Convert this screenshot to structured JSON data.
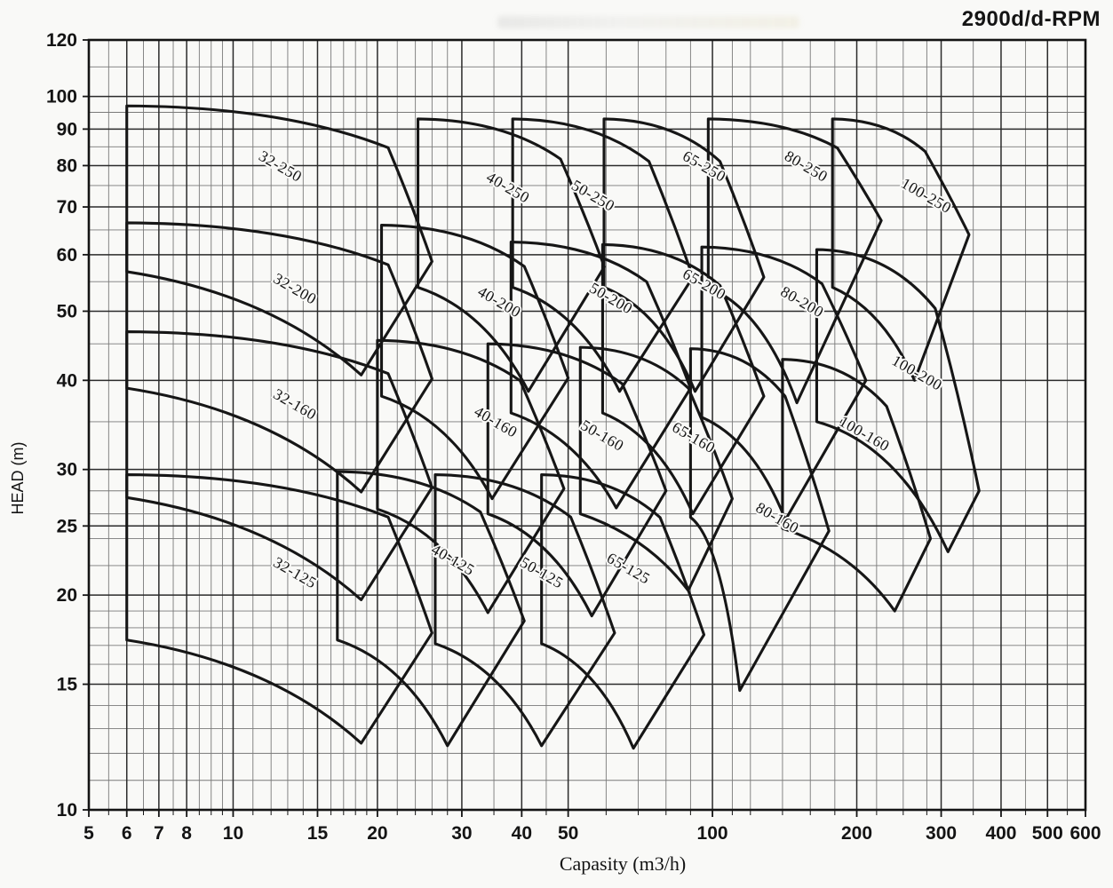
{
  "title": "2900d/d-RPM",
  "colors": {
    "paper": "#f9f9f7",
    "ink": "#141414",
    "grid_major": "#2b2b2b",
    "grid_minor": "#5a5a5a",
    "envelope": "#161616",
    "label_halo": "#f9f9f7"
  },
  "chart_data": {
    "type": "area",
    "subtype": "pump-selection-envelope-chart",
    "title": "2900d/d-RPM",
    "xlabel": "Capasity (m3/h)",
    "ylabel": "HEAD (m)",
    "scale": "log-log",
    "xlim": [
      5,
      600
    ],
    "ylim": [
      10,
      120
    ],
    "grid": true,
    "x_major_ticks": [
      5,
      6,
      7,
      8,
      10,
      15,
      20,
      30,
      40,
      50,
      100,
      200,
      300,
      400,
      500,
      600
    ],
    "x_minor_ticks": [
      5.5,
      6.5,
      7.5,
      8.5,
      9,
      9.5,
      11,
      12,
      13,
      14,
      16,
      17,
      18,
      19,
      22,
      24,
      26,
      28,
      35,
      45,
      60,
      70,
      80,
      90,
      110,
      120,
      140,
      160,
      180,
      220,
      250,
      280,
      350,
      450,
      550
    ],
    "y_major_ticks": [
      10,
      15,
      20,
      25,
      30,
      40,
      50,
      60,
      70,
      80,
      90,
      100,
      120
    ],
    "y_minor_ticks": [
      11,
      12,
      13,
      14,
      16,
      17,
      18,
      19,
      22,
      24,
      26,
      28,
      35,
      45,
      55,
      65,
      75,
      85,
      95,
      110
    ],
    "envelopes": [
      {
        "label": "32-250",
        "tl": [
          6,
          97
        ],
        "r": [
          26,
          58.7
        ],
        "b": [
          18.5,
          40.7
        ],
        "bl_h": 56.8,
        "label_pos": [
          12.4,
          78.7
        ]
      },
      {
        "label": "40-250",
        "tl": [
          24.3,
          93
        ],
        "r": [
          59.5,
          57.7
        ],
        "b": [
          41.3,
          38.6
        ],
        "bl_h": 54,
        "label_pos": [
          37,
          73.5
        ]
      },
      {
        "label": "50-250",
        "tl": [
          38.3,
          93
        ],
        "r": [
          91,
          55.8
        ],
        "b": [
          64,
          38.6
        ],
        "bl_h": 54,
        "label_pos": [
          55.7,
          71.6
        ]
      },
      {
        "label": "65-250",
        "tl": [
          59.4,
          93
        ],
        "r": [
          128,
          55.8
        ],
        "b": [
          92,
          38.6
        ],
        "bl_h": 54,
        "label_pos": [
          95,
          78.7
        ]
      },
      {
        "label": "80-250",
        "tl": [
          98,
          93
        ],
        "r": [
          225,
          67
        ],
        "b": [
          150,
          37.2
        ],
        "bl_h": 54,
        "label_pos": [
          155,
          78.7
        ]
      },
      {
        "label": "100-250",
        "tl": [
          178,
          93
        ],
        "r": [
          343,
          64
        ],
        "b": [
          264,
          40
        ],
        "bl_h": 54,
        "label_pos": [
          276,
          71.6
        ]
      },
      {
        "label": "32-200",
        "tl": [
          6,
          66.5
        ],
        "r": [
          26,
          40.2
        ],
        "b": [
          18.5,
          27.9
        ],
        "bl_h": 39,
        "label_pos": [
          13.3,
          53
        ]
      },
      {
        "label": "40-200",
        "tl": [
          20.4,
          66
        ],
        "r": [
          50,
          40.3
        ],
        "b": [
          34.7,
          27.3
        ],
        "bl_h": 38,
        "label_pos": [
          35.5,
          50.8
        ]
      },
      {
        "label": "50-200",
        "tl": [
          38,
          62.5
        ],
        "r": [
          90,
          39
        ],
        "b": [
          63,
          26.5
        ],
        "bl_h": 36,
        "label_pos": [
          60.7,
          51.4
        ]
      },
      {
        "label": "65-200",
        "tl": [
          59,
          62
        ],
        "r": [
          128,
          38
        ],
        "b": [
          91,
          26
        ],
        "bl_h": 36,
        "label_pos": [
          95,
          53.8
        ]
      },
      {
        "label": "80-200",
        "tl": [
          95,
          61.5
        ],
        "r": [
          209,
          40
        ],
        "b": [
          142,
          25.5
        ],
        "bl_h": 35.5,
        "label_pos": [
          152,
          50.8
        ]
      },
      {
        "label": "100-200",
        "tl": [
          165,
          61
        ],
        "r": [
          360,
          28
        ],
        "b": [
          310,
          23
        ],
        "bl_h": 35,
        "label_pos": [
          264,
          40.4
        ]
      },
      {
        "label": "32-160",
        "tl": [
          6,
          46.8
        ],
        "r": [
          26,
          28.3
        ],
        "b": [
          18.5,
          19.7
        ],
        "bl_h": 27.4,
        "label_pos": [
          13.3,
          36.5
        ]
      },
      {
        "label": "40-160",
        "tl": [
          20,
          45.5
        ],
        "r": [
          49,
          28.2
        ],
        "b": [
          34,
          18.9
        ],
        "bl_h": 26.4,
        "label_pos": [
          34.9,
          34.5
        ]
      },
      {
        "label": "50-160",
        "tl": [
          34,
          45
        ],
        "r": [
          80,
          28
        ],
        "b": [
          56,
          18.7
        ],
        "bl_h": 26,
        "label_pos": [
          58.2,
          33
        ]
      },
      {
        "label": "65-160",
        "tl": [
          53,
          44.5
        ],
        "r": [
          110,
          27.3
        ],
        "b": [
          89,
          20.3
        ],
        "bl_h": 26,
        "label_pos": [
          90.3,
          32.8
        ]
      },
      {
        "label": "80-160",
        "tl": [
          90,
          44.3
        ],
        "r": [
          175,
          24.6
        ],
        "b": [
          114,
          14.7
        ],
        "bl_h": 25.7,
        "label_pos": [
          135,
          25.3
        ]
      },
      {
        "label": "100-160",
        "tl": [
          140,
          42.8
        ],
        "r": [
          285,
          24
        ],
        "b": [
          240,
          19
        ],
        "bl_h": 24.8,
        "label_pos": [
          205,
          33.2
        ]
      },
      {
        "label": "32-125",
        "tl": [
          6,
          29.5
        ],
        "r": [
          26,
          17.7
        ],
        "b": [
          18.5,
          12.4
        ],
        "bl_h": 17.3,
        "label_pos": [
          13.3,
          21.2
        ]
      },
      {
        "label": "40-125",
        "tl": [
          16.5,
          29.8
        ],
        "r": [
          40.5,
          18.4
        ],
        "b": [
          28,
          12.3
        ],
        "bl_h": 17.3,
        "label_pos": [
          28.4,
          22.1
        ]
      },
      {
        "label": "50-125",
        "tl": [
          26.4,
          29.5
        ],
        "r": [
          62.5,
          17.7
        ],
        "b": [
          44,
          12.3
        ],
        "bl_h": 17.1,
        "label_pos": [
          43.5,
          21.2
        ]
      },
      {
        "label": "65-125",
        "tl": [
          44,
          29.5
        ],
        "r": [
          96,
          17.6
        ],
        "b": [
          68.4,
          12.2
        ],
        "bl_h": 17.1,
        "label_pos": [
          66,
          21.5
        ]
      }
    ]
  }
}
